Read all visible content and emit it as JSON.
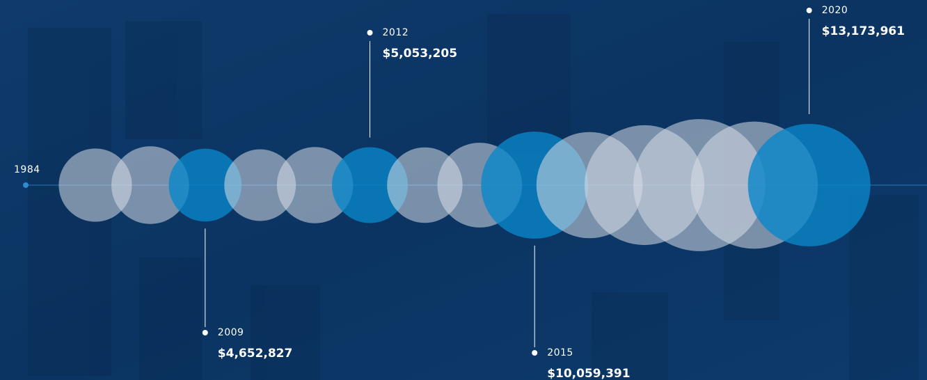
{
  "chart_data": {
    "type": "bubble",
    "start_label": "1984",
    "categories": [
      null,
      null,
      "2009",
      null,
      null,
      "2012",
      null,
      null,
      "2015",
      null,
      null,
      null,
      null,
      "2020"
    ],
    "series": [
      {
        "color": "#d7dde6",
        "highlight_color": "#0a86c8",
        "values": [
          4700000,
          5300000,
          4652827,
          4500000,
          5100000,
          5053205,
          5000000,
          6300000,
          10059391,
          9900000,
          12600000,
          15300000,
          14200000,
          13173961
        ],
        "value_labels": [
          null,
          null,
          "$4,652,827",
          null,
          null,
          "$5,053,205",
          null,
          null,
          "$10,059,391",
          null,
          null,
          null,
          null,
          "$13,173,961"
        ]
      }
    ]
  }
}
